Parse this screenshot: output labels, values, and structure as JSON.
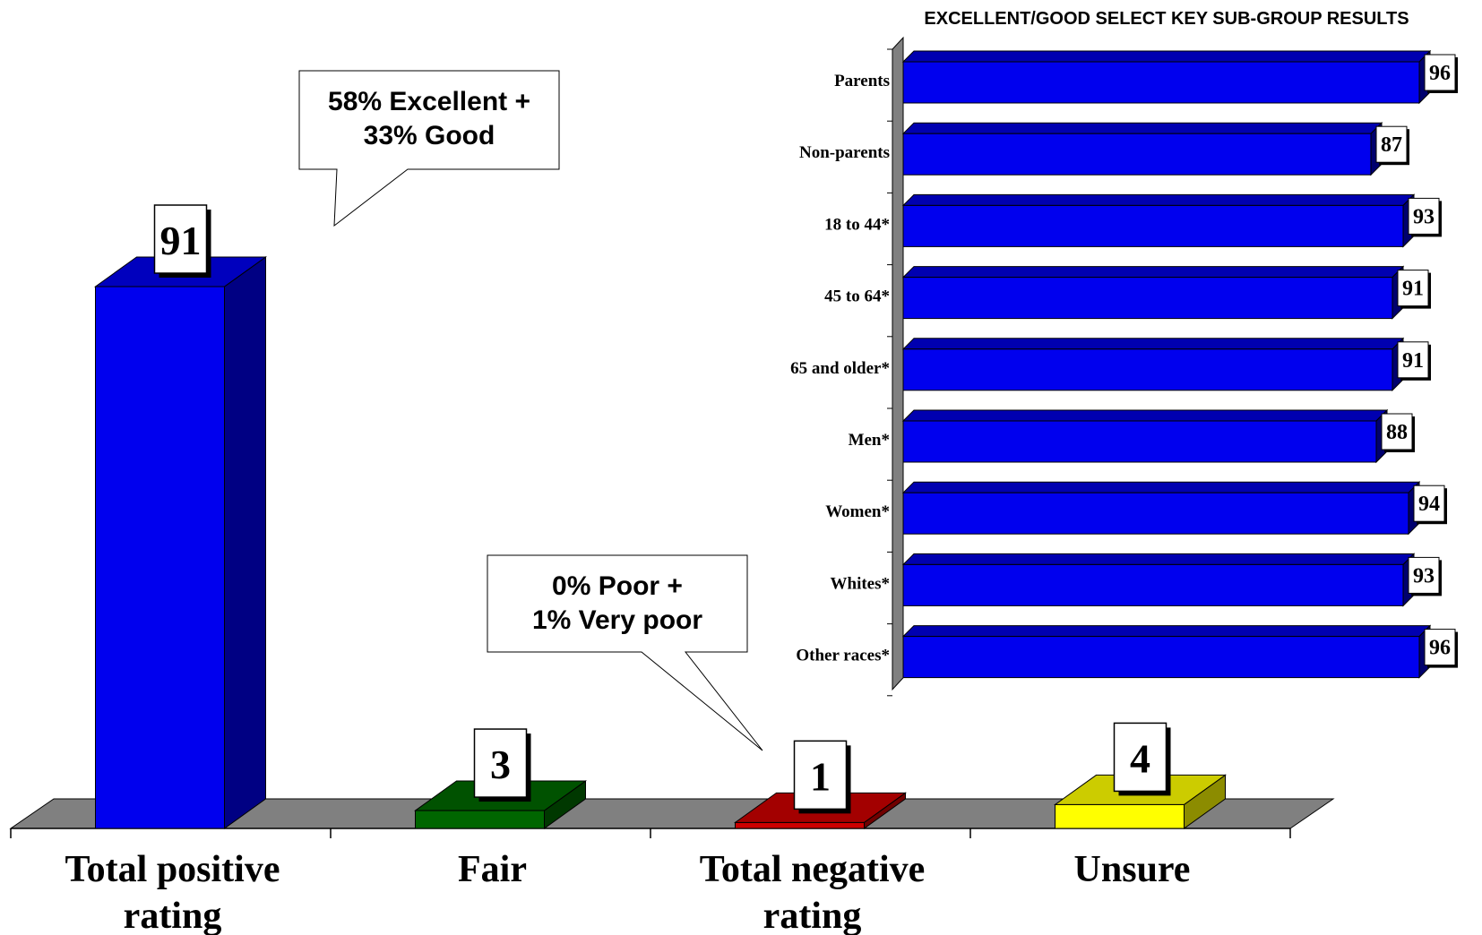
{
  "chart_data": [
    {
      "type": "bar",
      "categories": [
        "Total positive rating",
        "Fair",
        "Total negative rating",
        "Unsure"
      ],
      "values": [
        91,
        3,
        1,
        4
      ],
      "colors": [
        "#0000ee",
        "#006600",
        "#cc0000",
        "#ffff00"
      ],
      "ylim": [
        0,
        100
      ],
      "annotations": [
        {
          "target": "Total positive rating",
          "lines": [
            "58% Excellent +",
            "33% Good"
          ]
        },
        {
          "target": "Total negative rating",
          "lines": [
            "0% Poor +",
            "1% Very poor"
          ]
        }
      ]
    },
    {
      "type": "bar",
      "orientation": "horizontal",
      "title": "EXCELLENT/GOOD SELECT KEY SUB-GROUP RESULTS",
      "categories": [
        "Parents",
        "Non-parents",
        "18 to 44*",
        "45 to 64*",
        "65 and older*",
        "Men*",
        "Women*",
        "Whites*",
        "Other races*"
      ],
      "values": [
        96,
        87,
        93,
        91,
        91,
        88,
        94,
        93,
        96
      ],
      "color": "#0000ee",
      "xlim": [
        0,
        100
      ]
    }
  ]
}
